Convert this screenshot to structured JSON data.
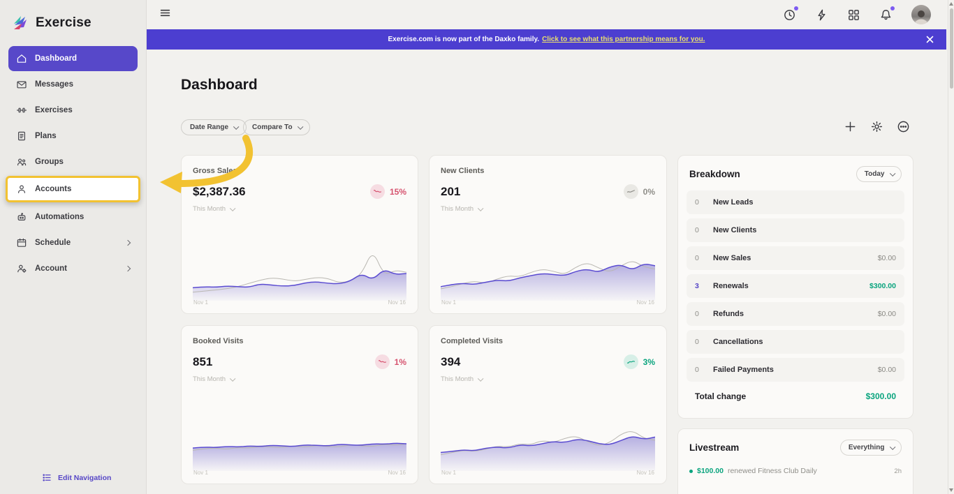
{
  "app": {
    "name": "Exercise"
  },
  "banner": {
    "text": "Exercise.com is now part of the Daxko family.",
    "link": "Click to see what this partnership means for you."
  },
  "sidebar": {
    "items": [
      {
        "label": "Dashboard"
      },
      {
        "label": "Messages"
      },
      {
        "label": "Exercises"
      },
      {
        "label": "Plans"
      },
      {
        "label": "Groups"
      },
      {
        "label": "Accounts"
      },
      {
        "label": "Automations"
      },
      {
        "label": "Schedule"
      },
      {
        "label": "Account"
      }
    ],
    "edit_nav": "Edit Navigation"
  },
  "main": {
    "title": "Dashboard",
    "filters": {
      "date_range": "Date Range",
      "compare_to": "Compare To"
    },
    "stat_cards": [
      {
        "title": "Gross Sales",
        "value": "$2,387.36",
        "delta": "15%",
        "trend": "down",
        "period": "This Month",
        "x_start": "Nov 1",
        "x_end": "Nov 16",
        "chart": {
          "purple": [
            18,
            20,
            19,
            21,
            20,
            19,
            25,
            23,
            21,
            22,
            27,
            29,
            26,
            25,
            30,
            44,
            32,
            52,
            42,
            44
          ],
          "gray": [
            10,
            12,
            14,
            16,
            20,
            26,
            32,
            36,
            34,
            30,
            33,
            37,
            35,
            27,
            30,
            42,
            88,
            40,
            50,
            46
          ]
        }
      },
      {
        "title": "New Clients",
        "value": "201",
        "delta": "0%",
        "trend": "flat",
        "period": "This Month",
        "x_start": "Nov 1",
        "x_end": "Nov 16",
        "chart": {
          "purple": [
            20,
            24,
            26,
            24,
            28,
            32,
            30,
            36,
            40,
            44,
            42,
            40,
            48,
            52,
            46,
            56,
            60,
            50,
            62,
            58
          ],
          "gray": [
            16,
            20,
            26,
            30,
            26,
            34,
            40,
            38,
            46,
            52,
            48,
            42,
            56,
            64,
            54,
            46,
            58,
            68,
            56,
            52
          ]
        }
      },
      {
        "title": "Booked Visits",
        "value": "851",
        "delta": "1%",
        "trend": "down",
        "period": "This Month",
        "x_start": "Nov 1",
        "x_end": "Nov 16",
        "chart": {
          "purple": [
            36,
            38,
            37,
            39,
            38,
            40,
            39,
            41,
            40,
            39,
            42,
            41,
            40,
            43,
            42,
            41,
            44,
            43,
            45,
            44
          ],
          "gray": [
            32,
            35,
            36,
            34,
            37,
            36,
            39,
            38,
            37,
            40,
            38,
            41,
            39,
            38,
            42,
            40,
            39,
            43,
            41,
            44
          ]
        }
      },
      {
        "title": "Completed Visits",
        "value": "394",
        "delta": "3%",
        "trend": "up",
        "period": "This Month",
        "x_start": "Nov 1",
        "x_end": "Nov 16",
        "chart": {
          "purple": [
            28,
            30,
            33,
            31,
            36,
            38,
            36,
            42,
            40,
            44,
            48,
            46,
            52,
            50,
            44,
            42,
            50,
            58,
            52,
            56
          ],
          "gray": [
            24,
            28,
            32,
            30,
            34,
            40,
            38,
            44,
            42,
            50,
            46,
            54,
            58,
            48,
            40,
            46,
            62,
            68,
            54,
            50
          ]
        }
      }
    ],
    "breakdown": {
      "title": "Breakdown",
      "dropdown": "Today",
      "rows": [
        {
          "count": "0",
          "label": "New Leads",
          "amount": ""
        },
        {
          "count": "0",
          "label": "New Clients",
          "amount": ""
        },
        {
          "count": "0",
          "label": "New Sales",
          "amount": "$0.00"
        },
        {
          "count": "3",
          "label": "Renewals",
          "amount": "$300.00"
        },
        {
          "count": "0",
          "label": "Refunds",
          "amount": "$0.00"
        },
        {
          "count": "0",
          "label": "Cancellations",
          "amount": ""
        },
        {
          "count": "0",
          "label": "Failed Payments",
          "amount": "$0.00"
        }
      ],
      "total_label": "Total change",
      "total_amount": "$300.00"
    },
    "livestream": {
      "title": "Livestream",
      "dropdown": "Everything",
      "items": [
        {
          "amount": "$100.00",
          "text": "renewed Fitness Club Daily",
          "time": "2h"
        }
      ]
    }
  },
  "colors": {
    "accent": "#5748C9",
    "banner": "#4C3ED0",
    "annotation_yellow": "#F2C231",
    "positive": "#0AA47E",
    "negative": "#D6536F"
  }
}
